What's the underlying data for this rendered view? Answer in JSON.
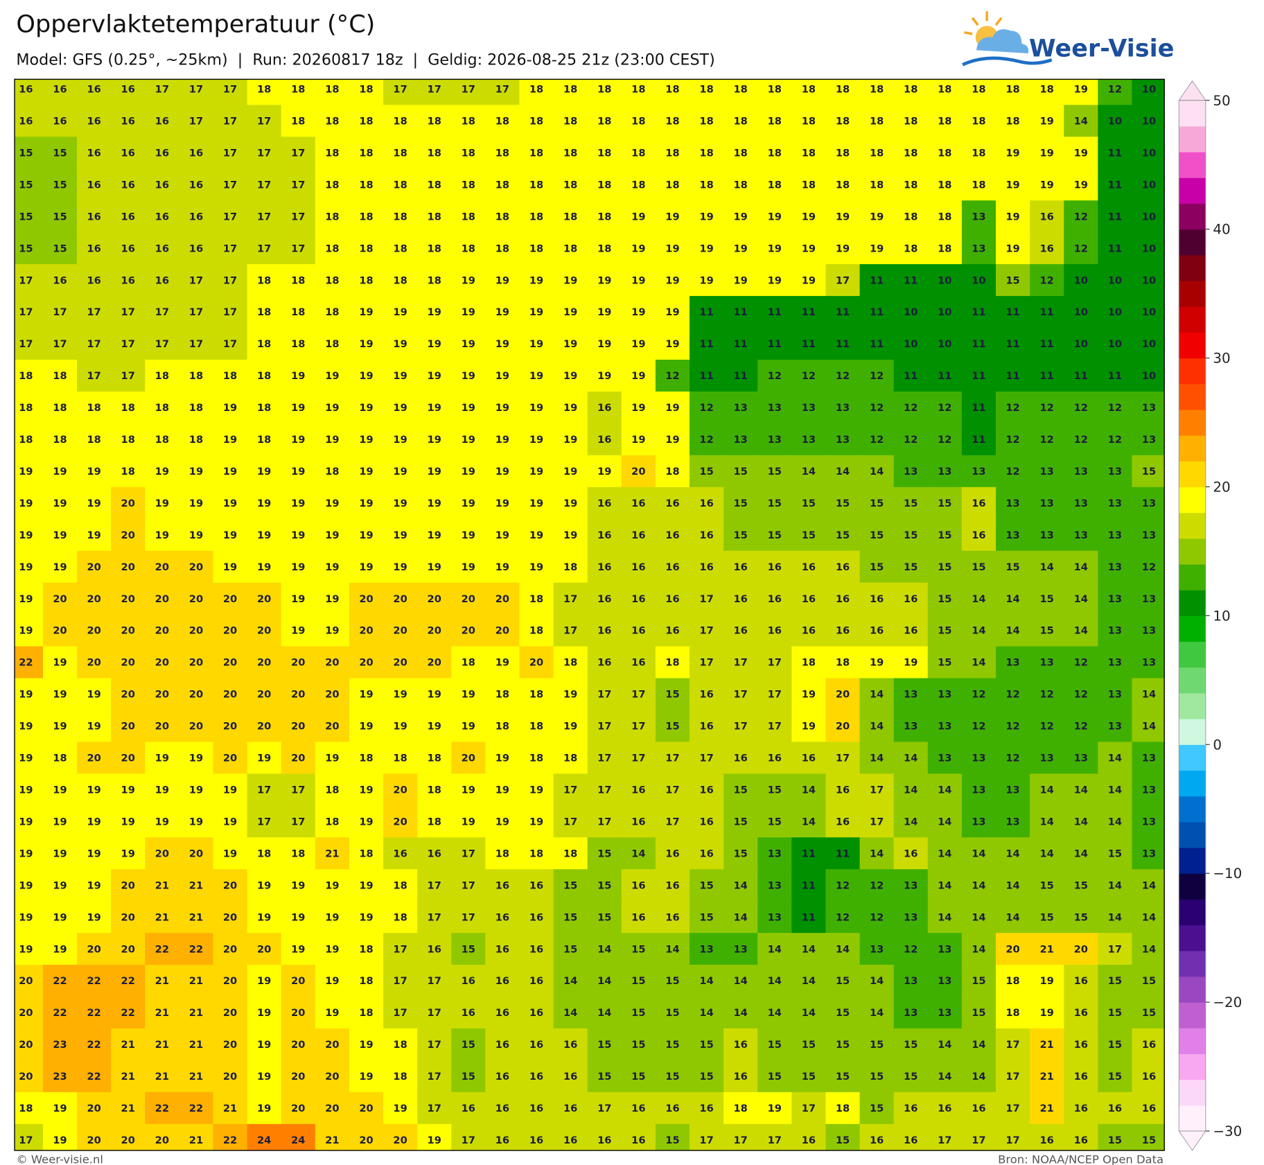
{
  "chart_data": {
    "type": "heatmap",
    "title": "Oppervlaktetemperatuur (°C)",
    "subtitle": "Model: GFS (0.25°, ~25km)  |  Run: 20260817 18z  |  Geldig: 2026-08-25 21z (23:00 CEST)",
    "logo": "Weer-Visie",
    "credit": "© Weer-visie.nl",
    "source": "Bron: NOAA/NCEP Open Data",
    "values": [
      [
        16,
        16,
        16,
        16,
        17,
        17,
        17,
        18,
        18,
        18,
        18,
        17,
        17,
        17,
        17,
        18,
        18,
        18,
        18,
        18,
        18,
        18,
        18,
        18,
        18,
        18,
        18,
        18,
        18,
        18,
        18,
        19,
        12,
        10
      ],
      [
        16,
        16,
        16,
        16,
        16,
        17,
        17,
        17,
        18,
        18,
        18,
        18,
        18,
        18,
        18,
        18,
        18,
        18,
        18,
        18,
        18,
        18,
        18,
        18,
        18,
        18,
        18,
        18,
        18,
        18,
        19,
        14,
        10,
        10
      ],
      [
        15,
        15,
        16,
        16,
        16,
        16,
        17,
        17,
        17,
        18,
        18,
        18,
        18,
        18,
        18,
        18,
        18,
        18,
        18,
        18,
        18,
        18,
        18,
        18,
        18,
        18,
        18,
        18,
        18,
        19,
        19,
        19,
        11,
        10
      ],
      [
        15,
        15,
        16,
        16,
        16,
        16,
        17,
        17,
        17,
        18,
        18,
        18,
        18,
        18,
        18,
        18,
        18,
        18,
        18,
        18,
        18,
        18,
        18,
        18,
        18,
        18,
        18,
        18,
        18,
        19,
        19,
        19,
        11,
        10
      ],
      [
        15,
        15,
        16,
        16,
        16,
        16,
        17,
        17,
        17,
        18,
        18,
        18,
        18,
        18,
        18,
        18,
        18,
        18,
        19,
        19,
        19,
        19,
        19,
        19,
        19,
        19,
        18,
        18,
        13,
        19,
        16,
        12,
        11,
        10
      ],
      [
        15,
        15,
        16,
        16,
        16,
        16,
        17,
        17,
        17,
        18,
        18,
        18,
        18,
        18,
        18,
        18,
        18,
        18,
        19,
        19,
        19,
        19,
        19,
        19,
        19,
        19,
        18,
        18,
        13,
        19,
        16,
        12,
        11,
        10
      ],
      [
        17,
        16,
        16,
        16,
        16,
        17,
        17,
        18,
        18,
        18,
        18,
        18,
        18,
        19,
        19,
        19,
        19,
        19,
        19,
        19,
        19,
        19,
        19,
        19,
        17,
        11,
        11,
        10,
        10,
        15,
        12,
        10,
        10,
        10
      ],
      [
        17,
        17,
        17,
        17,
        17,
        17,
        17,
        18,
        18,
        18,
        19,
        19,
        19,
        19,
        19,
        19,
        19,
        19,
        19,
        19,
        11,
        11,
        11,
        11,
        11,
        11,
        10,
        10,
        11,
        11,
        11,
        10,
        10,
        10
      ],
      [
        17,
        17,
        17,
        17,
        17,
        17,
        17,
        18,
        18,
        18,
        19,
        19,
        19,
        19,
        19,
        19,
        19,
        19,
        19,
        19,
        11,
        11,
        11,
        11,
        11,
        11,
        10,
        10,
        11,
        11,
        11,
        10,
        10,
        10
      ],
      [
        18,
        18,
        17,
        17,
        18,
        18,
        18,
        18,
        19,
        19,
        19,
        19,
        19,
        19,
        19,
        19,
        19,
        19,
        19,
        12,
        11,
        11,
        12,
        12,
        12,
        12,
        11,
        11,
        11,
        11,
        11,
        11,
        11,
        10
      ],
      [
        18,
        18,
        18,
        18,
        18,
        18,
        19,
        18,
        19,
        19,
        19,
        19,
        19,
        19,
        19,
        19,
        19,
        16,
        19,
        19,
        12,
        13,
        13,
        13,
        13,
        12,
        12,
        12,
        11,
        12,
        12,
        12,
        12,
        13
      ],
      [
        18,
        18,
        18,
        18,
        18,
        18,
        19,
        18,
        19,
        19,
        19,
        19,
        19,
        19,
        19,
        19,
        19,
        16,
        19,
        19,
        12,
        13,
        13,
        13,
        13,
        12,
        12,
        12,
        11,
        12,
        12,
        12,
        12,
        13
      ],
      [
        19,
        19,
        19,
        18,
        19,
        19,
        19,
        19,
        19,
        18,
        19,
        19,
        19,
        19,
        19,
        19,
        19,
        19,
        20,
        18,
        15,
        15,
        15,
        14,
        14,
        14,
        13,
        13,
        13,
        12,
        13,
        13,
        13,
        15
      ],
      [
        19,
        19,
        19,
        20,
        19,
        19,
        19,
        19,
        19,
        19,
        19,
        19,
        19,
        19,
        19,
        19,
        19,
        16,
        16,
        16,
        16,
        15,
        15,
        15,
        15,
        15,
        15,
        15,
        16,
        13,
        13,
        13,
        13,
        13
      ],
      [
        19,
        19,
        19,
        20,
        19,
        19,
        19,
        19,
        19,
        19,
        19,
        19,
        19,
        19,
        19,
        19,
        19,
        16,
        16,
        16,
        16,
        15,
        15,
        15,
        15,
        15,
        15,
        15,
        16,
        13,
        13,
        13,
        13,
        13
      ],
      [
        19,
        19,
        20,
        20,
        20,
        20,
        19,
        19,
        19,
        19,
        19,
        19,
        19,
        19,
        19,
        19,
        18,
        16,
        16,
        16,
        16,
        16,
        16,
        16,
        16,
        15,
        15,
        15,
        15,
        15,
        14,
        14,
        13,
        12
      ],
      [
        19,
        20,
        20,
        20,
        20,
        20,
        20,
        20,
        19,
        19,
        20,
        20,
        20,
        20,
        20,
        18,
        17,
        16,
        16,
        16,
        17,
        16,
        16,
        16,
        16,
        16,
        16,
        15,
        14,
        14,
        15,
        14,
        13,
        13
      ],
      [
        19,
        20,
        20,
        20,
        20,
        20,
        20,
        20,
        19,
        19,
        20,
        20,
        20,
        20,
        20,
        18,
        17,
        16,
        16,
        16,
        17,
        16,
        16,
        16,
        16,
        16,
        16,
        15,
        14,
        14,
        15,
        14,
        13,
        13
      ],
      [
        22,
        19,
        20,
        20,
        20,
        20,
        20,
        20,
        20,
        20,
        20,
        20,
        20,
        18,
        19,
        20,
        18,
        16,
        16,
        18,
        17,
        17,
        17,
        18,
        18,
        19,
        19,
        15,
        14,
        13,
        13,
        12,
        13,
        13
      ],
      [
        19,
        19,
        19,
        20,
        20,
        20,
        20,
        20,
        20,
        20,
        19,
        19,
        19,
        19,
        18,
        18,
        19,
        17,
        17,
        15,
        16,
        17,
        17,
        19,
        20,
        14,
        13,
        13,
        12,
        12,
        12,
        12,
        13,
        14
      ],
      [
        19,
        19,
        19,
        20,
        20,
        20,
        20,
        20,
        20,
        20,
        19,
        19,
        19,
        19,
        18,
        18,
        19,
        17,
        17,
        15,
        16,
        17,
        17,
        19,
        20,
        14,
        13,
        13,
        12,
        12,
        12,
        12,
        13,
        14
      ],
      [
        19,
        18,
        20,
        20,
        19,
        19,
        20,
        19,
        20,
        19,
        18,
        18,
        18,
        20,
        19,
        18,
        18,
        17,
        17,
        17,
        17,
        16,
        16,
        16,
        17,
        14,
        14,
        13,
        13,
        12,
        13,
        13,
        14,
        13
      ],
      [
        19,
        19,
        19,
        19,
        19,
        19,
        19,
        17,
        17,
        18,
        19,
        20,
        18,
        19,
        19,
        19,
        17,
        17,
        16,
        17,
        16,
        15,
        15,
        14,
        16,
        17,
        14,
        14,
        13,
        13,
        14,
        14,
        14,
        13
      ],
      [
        19,
        19,
        19,
        19,
        19,
        19,
        19,
        17,
        17,
        18,
        19,
        20,
        18,
        19,
        19,
        19,
        17,
        17,
        16,
        17,
        16,
        15,
        15,
        14,
        16,
        17,
        14,
        14,
        13,
        13,
        14,
        14,
        14,
        13
      ],
      [
        19,
        19,
        19,
        19,
        20,
        20,
        19,
        18,
        18,
        21,
        18,
        16,
        16,
        17,
        18,
        18,
        18,
        15,
        14,
        16,
        16,
        15,
        13,
        11,
        11,
        14,
        16,
        14,
        14,
        14,
        14,
        14,
        15,
        13
      ],
      [
        19,
        19,
        19,
        20,
        21,
        21,
        20,
        19,
        19,
        19,
        19,
        18,
        17,
        17,
        16,
        16,
        15,
        15,
        16,
        16,
        15,
        14,
        13,
        11,
        12,
        12,
        13,
        14,
        14,
        14,
        15,
        15,
        14,
        14
      ],
      [
        19,
        19,
        19,
        20,
        21,
        21,
        20,
        19,
        19,
        19,
        19,
        18,
        17,
        17,
        16,
        16,
        15,
        15,
        16,
        16,
        15,
        14,
        13,
        11,
        12,
        12,
        13,
        14,
        14,
        14,
        15,
        15,
        14,
        14
      ],
      [
        19,
        19,
        20,
        20,
        22,
        22,
        20,
        20,
        19,
        19,
        18,
        17,
        16,
        15,
        16,
        16,
        15,
        14,
        15,
        14,
        13,
        13,
        14,
        14,
        14,
        13,
        12,
        13,
        14,
        20,
        21,
        20,
        17,
        14
      ],
      [
        20,
        22,
        22,
        22,
        21,
        21,
        20,
        19,
        20,
        19,
        18,
        17,
        17,
        16,
        16,
        16,
        14,
        14,
        15,
        15,
        14,
        14,
        14,
        14,
        15,
        14,
        13,
        13,
        15,
        18,
        19,
        16,
        15,
        15
      ],
      [
        20,
        22,
        22,
        22,
        21,
        21,
        20,
        19,
        20,
        19,
        18,
        17,
        17,
        16,
        16,
        16,
        14,
        14,
        15,
        15,
        14,
        14,
        14,
        14,
        15,
        14,
        13,
        13,
        15,
        18,
        19,
        16,
        15,
        15
      ],
      [
        20,
        23,
        22,
        21,
        21,
        21,
        20,
        19,
        20,
        20,
        19,
        18,
        17,
        15,
        16,
        16,
        16,
        15,
        15,
        15,
        15,
        16,
        15,
        15,
        15,
        15,
        15,
        14,
        14,
        17,
        21,
        16,
        15,
        16
      ],
      [
        20,
        23,
        22,
        21,
        21,
        21,
        20,
        19,
        20,
        20,
        19,
        18,
        17,
        15,
        16,
        16,
        16,
        15,
        15,
        15,
        15,
        16,
        15,
        15,
        15,
        15,
        15,
        14,
        14,
        17,
        21,
        16,
        15,
        16
      ],
      [
        18,
        19,
        20,
        21,
        22,
        22,
        21,
        19,
        20,
        20,
        20,
        19,
        17,
        16,
        16,
        16,
        16,
        17,
        16,
        16,
        16,
        18,
        19,
        17,
        18,
        15,
        16,
        16,
        16,
        17,
        21,
        16,
        16,
        16
      ],
      [
        17,
        19,
        20,
        20,
        20,
        21,
        22,
        24,
        24,
        21,
        20,
        20,
        19,
        17,
        16,
        16,
        16,
        16,
        16,
        15,
        17,
        17,
        17,
        16,
        15,
        16,
        16,
        17,
        17,
        17,
        16,
        16,
        15,
        15
      ]
    ],
    "colorbar": {
      "lim": [
        -30,
        50
      ],
      "ticks": [
        {
          "value": -30,
          "label": "−30"
        },
        {
          "value": -20,
          "label": "−20"
        },
        {
          "value": -10,
          "label": "−10"
        },
        0,
        10,
        20,
        30,
        40,
        50
      ],
      "colors": [
        "#fff0fc",
        "#fcd8f8",
        "#f8a8f0",
        "#e080e8",
        "#c060d0",
        "#9a48c0",
        "#7030b0",
        "#4a1090",
        "#2a0070",
        "#100040",
        "#002090",
        "#0050b0",
        "#0070d0",
        "#00a8f0",
        "#40c8ff",
        "#d0f8e0",
        "#a0e8a0",
        "#70d870",
        "#40c840",
        "#00b000",
        "#009000",
        "#40b000",
        "#90c800",
        "#cddc00",
        "#ffff00",
        "#ffd800",
        "#ffb000",
        "#ff8000",
        "#ff5000",
        "#ff3000",
        "#f00000",
        "#d00000",
        "#a80000",
        "#800010",
        "#500030",
        "#8c0060",
        "#c800a8",
        "#f050c8",
        "#f8a8d8",
        "#fde0f2"
      ]
    }
  }
}
